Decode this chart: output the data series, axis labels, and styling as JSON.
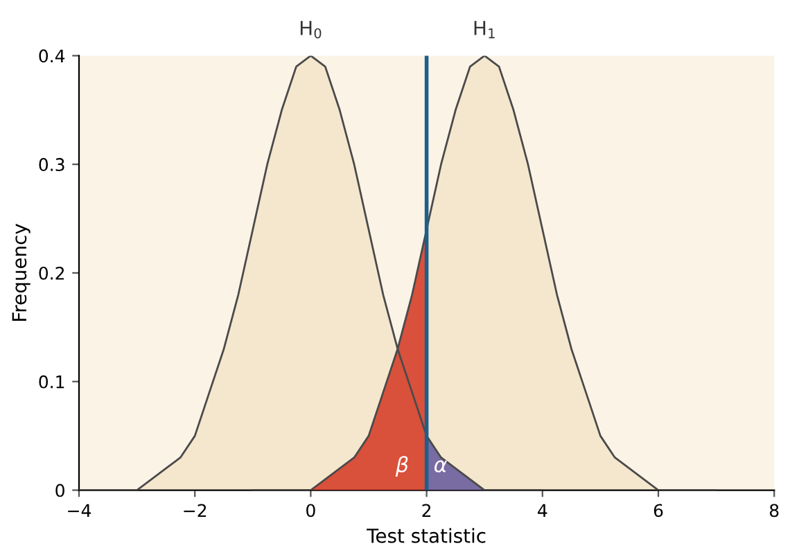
{
  "chart_data": {
    "type": "line",
    "xlabel": "Test statistic",
    "ylabel": "Frequency",
    "xlim": [
      -4,
      8
    ],
    "xticks": [
      {
        "value": -4,
        "label": "−4"
      },
      {
        "value": -2,
        "label": "−2"
      },
      0,
      2,
      4,
      6,
      8
    ],
    "ylim": [
      0,
      0.4
    ],
    "yticks": [
      0,
      0.1,
      0.2,
      0.3,
      0.4
    ],
    "grid": false,
    "series": [
      {
        "type": "area",
        "color": "#d6402c",
        "x": [
          -1,
          -0.5,
          0,
          0.25,
          0.5,
          0.75,
          1,
          1.25,
          1.5,
          1.75,
          2
        ],
        "values": [
          0.0,
          0.0,
          0.0,
          0.01,
          0.02,
          0.03,
          0.05,
          0.09,
          0.13,
          0.18,
          0.24
        ]
      },
      {
        "type": "area",
        "color": "#6b5f9e",
        "x": [
          2,
          2.25,
          2.5,
          2.75,
          3,
          3.5,
          4
        ],
        "values": [
          0.05,
          0.03,
          0.02,
          0.01,
          0.0,
          0.0,
          0.0
        ]
      },
      {
        "name": "H$_{0}$",
        "color": "#4a4a4a",
        "x": [
          -4,
          -3.5,
          -3,
          -2.75,
          -2.5,
          -2.25,
          -2,
          -1.75,
          -1.5,
          -1.25,
          -1,
          -0.75,
          -0.5,
          -0.25,
          0,
          0.25,
          0.5,
          0.75,
          1,
          1.25,
          1.5,
          1.75,
          2,
          2.25,
          2.5,
          2.75,
          3,
          3.5,
          4
        ],
        "values": [
          0.0,
          0.0,
          0.0,
          0.01,
          0.02,
          0.03,
          0.05,
          0.09,
          0.13,
          0.18,
          0.24,
          0.3,
          0.35,
          0.39,
          0.4,
          0.39,
          0.35,
          0.3,
          0.24,
          0.18,
          0.13,
          0.09,
          0.05,
          0.03,
          0.02,
          0.01,
          0.0,
          0.0,
          0.0
        ]
      },
      {
        "name": "H$_{1}$",
        "color": "#4a4a4a",
        "x": [
          -1,
          -0.5,
          0,
          0.25,
          0.5,
          0.75,
          1,
          1.25,
          1.5,
          1.75,
          2,
          2.25,
          2.5,
          2.75,
          3,
          3.25,
          3.5,
          3.75,
          4,
          4.25,
          4.5,
          4.75,
          5,
          5.25,
          5.5,
          5.75,
          6,
          6.5,
          7
        ],
        "values": [
          0.0,
          0.0,
          0.0,
          0.01,
          0.02,
          0.03,
          0.05,
          0.09,
          0.13,
          0.18,
          0.24,
          0.3,
          0.35,
          0.39,
          0.4,
          0.39,
          0.35,
          0.3,
          0.24,
          0.18,
          0.13,
          0.09,
          0.05,
          0.03,
          0.02,
          0.01,
          0.0,
          0.0,
          0.0
        ]
      }
    ],
    "ref_lines": [
      {
        "axis": "x",
        "value": 2,
        "color": "#1d5f8a"
      }
    ],
    "annotations": [
      "β",
      "α"
    ]
  }
}
